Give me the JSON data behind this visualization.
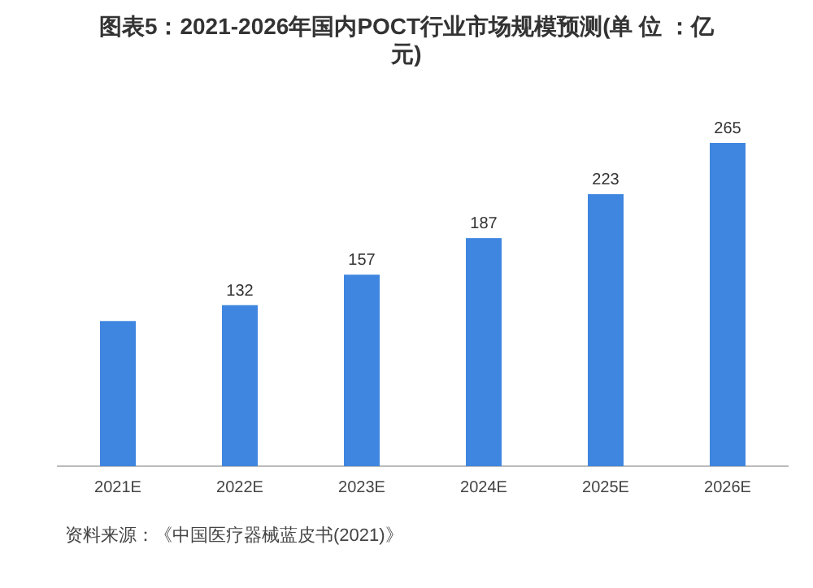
{
  "chart_data": {
    "type": "bar",
    "title": "图表5：2021-2026年国内POCT行业市场规模预测(单 位 ：亿元)",
    "categories": [
      "2021E",
      "2022E",
      "2023E",
      "2024E",
      "2025E",
      "2026E"
    ],
    "values": [
      119,
      132,
      157,
      187,
      223,
      265
    ],
    "value_labels": [
      null,
      "132",
      "157",
      "187",
      "223",
      "265"
    ],
    "color": "#3f86e0",
    "annotations": [
      "资料来源：《中国医疗器械蓝皮书(2021)》"
    ]
  }
}
